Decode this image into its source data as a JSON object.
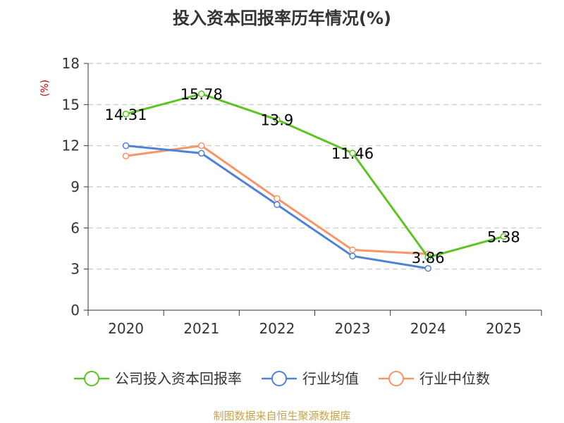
{
  "chart_data": {
    "type": "line",
    "title": "投入资本回报率历年情况(%)",
    "ylabel": "(%)",
    "xlabel": "",
    "categories": [
      "2020",
      "2021",
      "2022",
      "2023",
      "2024",
      "2025"
    ],
    "ylim": [
      0,
      18
    ],
    "yticks": [
      0,
      3,
      6,
      9,
      12,
      15,
      18
    ],
    "grid": true,
    "legend_position": "bottom",
    "series": [
      {
        "name": "公司投入资本回报率",
        "color": "#5cc524",
        "values": [
          14.31,
          15.78,
          13.9,
          11.46,
          3.86,
          5.38
        ],
        "labels": [
          "14.31",
          "15.78",
          "13.9",
          "11.46",
          "3.86",
          "5.38"
        ]
      },
      {
        "name": "行业均值",
        "color": "#4f81d9",
        "values": [
          12.0,
          11.45,
          7.7,
          3.95,
          3.05,
          null
        ]
      },
      {
        "name": "行业中位数",
        "color": "#f79468",
        "values": [
          11.25,
          12.0,
          8.15,
          4.4,
          4.1,
          null
        ]
      }
    ],
    "source": "制图数据来自恒生聚源数据库"
  }
}
